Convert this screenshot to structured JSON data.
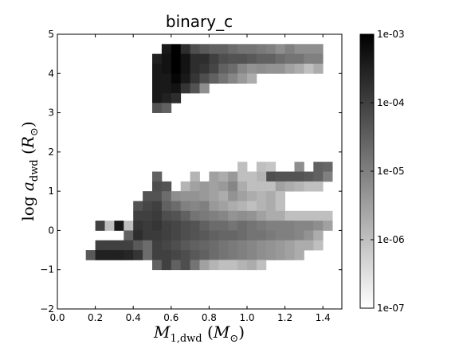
{
  "chart_data": {
    "type": "heatmap",
    "title": "binary_c",
    "xlabel": "M_{1,dwd}  (M_⊙)",
    "ylabel": "log a_{dwd}  (R_⊙)",
    "xlim": [
      0.0,
      1.5
    ],
    "ylim": [
      -2,
      5
    ],
    "x_ticks": [
      "0.0",
      "0.2",
      "0.4",
      "0.6",
      "0.8",
      "1.0",
      "1.2",
      "1.4"
    ],
    "y_ticks": [
      "−2",
      "−1",
      "0",
      "1",
      "2",
      "3",
      "4",
      "5"
    ],
    "colorbar": {
      "scale": "log",
      "range": [
        1e-07,
        0.001
      ],
      "tick_labels": [
        "1e-03",
        "1e-04",
        "1e-05",
        "1e-06",
        "1e-07"
      ],
      "colormap": "gray_r"
    },
    "bin_width": {
      "x": 0.05,
      "y": 0.25
    },
    "grid": false,
    "cells": [
      [
        0.55,
        4.5,
        0.0004
      ],
      [
        0.6,
        4.5,
        0.001
      ],
      [
        0.65,
        4.5,
        0.0002
      ],
      [
        0.7,
        4.5,
        6e-05
      ],
      [
        0.75,
        4.5,
        4e-05
      ],
      [
        0.8,
        4.5,
        3e-05
      ],
      [
        0.85,
        4.5,
        3e-05
      ],
      [
        0.9,
        4.5,
        2e-05
      ],
      [
        0.95,
        4.5,
        1.5e-05
      ],
      [
        1.0,
        4.5,
        1.5e-05
      ],
      [
        1.05,
        4.5,
        1.2e-05
      ],
      [
        1.1,
        4.5,
        1e-05
      ],
      [
        1.15,
        4.5,
        6e-06
      ],
      [
        1.2,
        4.5,
        1e-05
      ],
      [
        1.25,
        4.5,
        6e-06
      ],
      [
        1.3,
        4.5,
        6e-06
      ],
      [
        1.35,
        4.5,
        6e-06
      ],
      [
        0.5,
        4.25,
        0.0003
      ],
      [
        0.55,
        4.25,
        0.0005
      ],
      [
        0.6,
        4.25,
        0.001
      ],
      [
        0.65,
        4.25,
        0.0005
      ],
      [
        0.7,
        4.25,
        0.0002
      ],
      [
        0.75,
        4.25,
        0.0002
      ],
      [
        0.8,
        4.25,
        0.0001
      ],
      [
        0.85,
        4.25,
        6e-05
      ],
      [
        0.9,
        4.25,
        5e-05
      ],
      [
        0.95,
        4.25,
        5e-05
      ],
      [
        1.0,
        4.25,
        4e-05
      ],
      [
        1.05,
        4.25,
        3e-05
      ],
      [
        1.1,
        4.25,
        3e-05
      ],
      [
        1.15,
        4.25,
        2e-05
      ],
      [
        1.2,
        4.25,
        1.5e-05
      ],
      [
        1.25,
        4.25,
        1.5e-05
      ],
      [
        1.3,
        4.25,
        1e-05
      ],
      [
        1.35,
        4.25,
        1e-05
      ],
      [
        0.5,
        4.0,
        0.0004
      ],
      [
        0.55,
        4.0,
        0.0005
      ],
      [
        0.6,
        4.0,
        0.001
      ],
      [
        0.65,
        4.0,
        0.0005
      ],
      [
        0.7,
        4.0,
        0.0002
      ],
      [
        0.75,
        4.0,
        0.00015
      ],
      [
        0.8,
        4.0,
        8e-05
      ],
      [
        0.85,
        4.0,
        3e-05
      ],
      [
        0.9,
        4.0,
        2e-05
      ],
      [
        0.95,
        4.0,
        8e-06
      ],
      [
        1.0,
        4.0,
        5e-06
      ],
      [
        1.05,
        4.0,
        6e-06
      ],
      [
        1.1,
        4.0,
        5e-06
      ],
      [
        1.15,
        4.0,
        5e-06
      ],
      [
        1.2,
        4.0,
        3e-06
      ],
      [
        1.25,
        4.0,
        2e-06
      ],
      [
        1.3,
        4.0,
        1e-06
      ],
      [
        1.35,
        4.0,
        2e-06
      ],
      [
        0.5,
        3.75,
        0.0004
      ],
      [
        0.55,
        3.75,
        0.0004
      ],
      [
        0.6,
        3.75,
        0.0008
      ],
      [
        0.65,
        3.75,
        0.0004
      ],
      [
        0.7,
        3.75,
        0.00015
      ],
      [
        0.75,
        3.75,
        6e-05
      ],
      [
        0.8,
        3.75,
        3e-05
      ],
      [
        0.85,
        3.75,
        1.5e-05
      ],
      [
        0.9,
        3.75,
        8e-06
      ],
      [
        0.95,
        3.75,
        4e-06
      ],
      [
        1.0,
        3.75,
        2e-06
      ],
      [
        0.5,
        3.5,
        0.0004
      ],
      [
        0.55,
        3.5,
        0.0004
      ],
      [
        0.6,
        3.5,
        0.0005
      ],
      [
        0.65,
        3.5,
        0.00015
      ],
      [
        0.7,
        3.5,
        5e-05
      ],
      [
        0.75,
        3.5,
        6e-06
      ],
      [
        0.5,
        3.25,
        0.0004
      ],
      [
        0.55,
        3.25,
        0.0003
      ],
      [
        0.6,
        3.25,
        0.0002
      ],
      [
        0.5,
        3.0,
        5e-05
      ],
      [
        0.55,
        3.0,
        3e-05
      ],
      [
        1.35,
        1.5,
        3e-05
      ],
      [
        1.4,
        1.5,
        2.5e-05
      ],
      [
        1.25,
        1.5,
        6e-06
      ],
      [
        0.95,
        1.5,
        1e-06
      ],
      [
        1.05,
        1.5,
        1e-06
      ],
      [
        1.1,
        1.5,
        8e-07
      ],
      [
        0.5,
        1.25,
        3e-05
      ],
      [
        0.7,
        1.25,
        1.5e-06
      ],
      [
        0.8,
        1.25,
        3e-06
      ],
      [
        0.85,
        1.25,
        2e-06
      ],
      [
        0.9,
        1.25,
        4e-06
      ],
      [
        1.1,
        1.25,
        6e-05
      ],
      [
        1.15,
        1.25,
        5e-05
      ],
      [
        1.2,
        1.25,
        5e-05
      ],
      [
        1.25,
        1.25,
        5e-05
      ],
      [
        1.3,
        1.25,
        4e-05
      ],
      [
        1.35,
        1.25,
        3e-05
      ],
      [
        1.4,
        1.25,
        1e-05
      ],
      [
        1.05,
        1.25,
        1.5e-06
      ],
      [
        1.0,
        1.25,
        1e-06
      ],
      [
        0.95,
        1.25,
        1e-06
      ],
      [
        0.5,
        1.0,
        6e-05
      ],
      [
        0.55,
        1.0,
        5e-05
      ],
      [
        0.65,
        1.0,
        1.5e-06
      ],
      [
        0.7,
        1.0,
        3e-06
      ],
      [
        0.75,
        1.0,
        4e-06
      ],
      [
        0.8,
        1.0,
        3e-06
      ],
      [
        0.85,
        1.0,
        4e-06
      ],
      [
        0.9,
        1.0,
        8e-06
      ],
      [
        0.95,
        1.0,
        2e-06
      ],
      [
        1.0,
        1.0,
        1e-06
      ],
      [
        1.05,
        1.0,
        1e-06
      ],
      [
        1.1,
        1.0,
        1e-06
      ],
      [
        1.15,
        1.0,
        3e-06
      ],
      [
        1.2,
        1.0,
        2e-06
      ],
      [
        1.25,
        1.0,
        1.5e-06
      ],
      [
        1.3,
        1.0,
        1e-06
      ],
      [
        1.35,
        1.0,
        1e-06
      ],
      [
        0.45,
        0.75,
        5e-05
      ],
      [
        0.5,
        0.75,
        5e-05
      ],
      [
        0.55,
        0.75,
        2e-05
      ],
      [
        0.6,
        0.75,
        6e-06
      ],
      [
        0.65,
        0.75,
        5e-06
      ],
      [
        0.7,
        0.75,
        5e-06
      ],
      [
        0.75,
        0.75,
        4e-06
      ],
      [
        0.8,
        0.75,
        3e-06
      ],
      [
        0.85,
        0.75,
        2e-06
      ],
      [
        0.9,
        0.75,
        5e-06
      ],
      [
        0.95,
        0.75,
        3e-06
      ],
      [
        1.0,
        0.75,
        2e-06
      ],
      [
        1.05,
        0.75,
        1.5e-06
      ],
      [
        1.1,
        0.75,
        2e-06
      ],
      [
        1.15,
        0.75,
        1e-06
      ],
      [
        0.4,
        0.5,
        5e-05
      ],
      [
        0.45,
        0.5,
        8e-05
      ],
      [
        0.5,
        0.5,
        0.0001
      ],
      [
        0.55,
        0.5,
        3e-05
      ],
      [
        0.6,
        0.5,
        2e-05
      ],
      [
        0.65,
        0.5,
        1e-05
      ],
      [
        0.7,
        0.5,
        8e-06
      ],
      [
        0.75,
        0.5,
        1e-05
      ],
      [
        0.8,
        0.5,
        4e-06
      ],
      [
        0.85,
        0.5,
        3e-06
      ],
      [
        0.9,
        0.5,
        2e-06
      ],
      [
        0.95,
        0.5,
        1.5e-06
      ],
      [
        1.0,
        0.5,
        1e-06
      ],
      [
        1.05,
        0.5,
        1.5e-06
      ],
      [
        1.1,
        0.5,
        2e-06
      ],
      [
        1.15,
        0.5,
        1e-06
      ],
      [
        0.4,
        0.25,
        0.0001
      ],
      [
        0.45,
        0.25,
        0.0001
      ],
      [
        0.5,
        0.25,
        0.00012
      ],
      [
        0.55,
        0.25,
        6e-05
      ],
      [
        0.6,
        0.25,
        5e-05
      ],
      [
        0.65,
        0.25,
        3e-05
      ],
      [
        0.7,
        0.25,
        1.5e-05
      ],
      [
        0.75,
        0.25,
        1.2e-05
      ],
      [
        0.8,
        0.25,
        1e-05
      ],
      [
        0.85,
        0.25,
        8e-06
      ],
      [
        0.9,
        0.25,
        5e-06
      ],
      [
        0.95,
        0.25,
        6e-06
      ],
      [
        1.0,
        0.25,
        5e-06
      ],
      [
        1.05,
        0.25,
        3e-06
      ],
      [
        1.1,
        0.25,
        2e-06
      ],
      [
        1.15,
        0.25,
        2e-06
      ],
      [
        1.2,
        0.25,
        1e-06
      ],
      [
        1.25,
        0.25,
        1e-06
      ],
      [
        1.3,
        0.25,
        1e-06
      ],
      [
        1.35,
        0.25,
        1e-06
      ],
      [
        1.4,
        0.25,
        1e-06
      ],
      [
        0.2,
        0.0,
        0.0001
      ],
      [
        0.25,
        0.0,
        1e-06
      ],
      [
        0.3,
        0.0,
        0.0004
      ],
      [
        0.35,
        0.0,
        1e-06
      ],
      [
        0.4,
        0.0,
        0.00015
      ],
      [
        0.45,
        0.0,
        0.00012
      ],
      [
        0.5,
        0.0,
        0.00015
      ],
      [
        0.55,
        0.0,
        0.0001
      ],
      [
        0.6,
        0.0,
        8e-05
      ],
      [
        0.65,
        0.0,
        6e-05
      ],
      [
        0.7,
        0.0,
        5e-05
      ],
      [
        0.75,
        0.0,
        3e-05
      ],
      [
        0.8,
        0.0,
        2e-05
      ],
      [
        0.85,
        0.0,
        2e-05
      ],
      [
        0.9,
        0.0,
        1.5e-05
      ],
      [
        0.95,
        0.0,
        2e-05
      ],
      [
        1.0,
        0.0,
        1.5e-05
      ],
      [
        1.05,
        0.0,
        1.2e-05
      ],
      [
        1.1,
        0.0,
        1e-05
      ],
      [
        1.15,
        0.0,
        1e-05
      ],
      [
        1.2,
        0.0,
        1e-05
      ],
      [
        1.25,
        0.0,
        8e-06
      ],
      [
        1.3,
        0.0,
        8e-06
      ],
      [
        1.35,
        0.0,
        6e-06
      ],
      [
        1.4,
        0.0,
        3e-06
      ],
      [
        0.35,
        -0.25,
        3e-05
      ],
      [
        0.4,
        -0.25,
        0.0002
      ],
      [
        0.45,
        -0.25,
        0.00012
      ],
      [
        0.5,
        -0.25,
        0.00012
      ],
      [
        0.55,
        -0.25,
        0.0001
      ],
      [
        0.6,
        -0.25,
        8e-05
      ],
      [
        0.65,
        -0.25,
        6e-05
      ],
      [
        0.7,
        -0.25,
        5e-05
      ],
      [
        0.75,
        -0.25,
        4e-05
      ],
      [
        0.8,
        -0.25,
        3e-05
      ],
      [
        0.85,
        -0.25,
        2.5e-05
      ],
      [
        0.9,
        -0.25,
        2.5e-05
      ],
      [
        0.95,
        -0.25,
        2e-05
      ],
      [
        1.0,
        -0.25,
        1.5e-05
      ],
      [
        1.05,
        -0.25,
        1.5e-05
      ],
      [
        1.1,
        -0.25,
        1.2e-05
      ],
      [
        1.15,
        -0.25,
        1e-05
      ],
      [
        1.2,
        -0.25,
        1e-05
      ],
      [
        1.25,
        -0.25,
        8e-06
      ],
      [
        1.3,
        -0.25,
        5e-06
      ],
      [
        1.35,
        -0.25,
        2e-06
      ],
      [
        0.2,
        -0.5,
        0.0001
      ],
      [
        0.25,
        -0.5,
        0.0001
      ],
      [
        0.3,
        -0.5,
        0.0001
      ],
      [
        0.35,
        -0.5,
        0.0001
      ],
      [
        0.4,
        -0.5,
        4e-05
      ],
      [
        0.45,
        -0.5,
        2e-05
      ],
      [
        0.5,
        -0.5,
        0.0001
      ],
      [
        0.55,
        -0.5,
        8e-05
      ],
      [
        0.6,
        -0.5,
        6e-05
      ],
      [
        0.65,
        -0.5,
        4e-05
      ],
      [
        0.7,
        -0.5,
        3e-05
      ],
      [
        0.75,
        -0.5,
        2.5e-05
      ],
      [
        0.8,
        -0.5,
        2e-05
      ],
      [
        0.85,
        -0.5,
        1.5e-05
      ],
      [
        0.9,
        -0.5,
        1.2e-05
      ],
      [
        0.95,
        -0.5,
        1e-05
      ],
      [
        1.0,
        -0.5,
        8e-06
      ],
      [
        1.05,
        -0.5,
        6e-06
      ],
      [
        1.1,
        -0.5,
        5e-06
      ],
      [
        1.15,
        -0.5,
        4e-06
      ],
      [
        1.2,
        -0.5,
        3e-06
      ],
      [
        1.25,
        -0.5,
        2e-06
      ],
      [
        1.3,
        -0.5,
        2e-06
      ],
      [
        1.35,
        -0.5,
        1e-06
      ],
      [
        0.15,
        -0.75,
        4e-05
      ],
      [
        0.2,
        -0.75,
        0.0003
      ],
      [
        0.25,
        -0.75,
        0.0003
      ],
      [
        0.3,
        -0.75,
        0.0003
      ],
      [
        0.35,
        -0.75,
        0.00025
      ],
      [
        0.4,
        -0.75,
        0.00015
      ],
      [
        0.45,
        -0.75,
        2e-05
      ],
      [
        0.5,
        -0.75,
        0.0001
      ],
      [
        0.55,
        -0.75,
        0.0001
      ],
      [
        0.6,
        -0.75,
        8e-05
      ],
      [
        0.65,
        -0.75,
        6e-05
      ],
      [
        0.7,
        -0.75,
        4e-05
      ],
      [
        0.75,
        -0.75,
        3e-05
      ],
      [
        0.8,
        -0.75,
        2e-05
      ],
      [
        0.85,
        -0.75,
        1.5e-05
      ],
      [
        0.9,
        -0.75,
        1.2e-05
      ],
      [
        0.95,
        -0.75,
        1e-05
      ],
      [
        1.0,
        -0.75,
        8e-06
      ],
      [
        1.05,
        -0.75,
        6e-06
      ],
      [
        1.1,
        -0.75,
        5e-06
      ],
      [
        1.15,
        -0.75,
        4e-06
      ],
      [
        1.2,
        -0.75,
        3e-06
      ],
      [
        1.25,
        -0.75,
        2e-06
      ],
      [
        0.5,
        -1.0,
        3e-05
      ],
      [
        0.55,
        -1.0,
        0.0001
      ],
      [
        0.6,
        -1.0,
        3e-05
      ],
      [
        0.65,
        -1.0,
        6e-05
      ],
      [
        0.7,
        -1.0,
        1.5e-05
      ],
      [
        0.75,
        -1.0,
        3e-06
      ],
      [
        0.8,
        -1.0,
        1.5e-06
      ],
      [
        0.85,
        -1.0,
        1e-06
      ],
      [
        0.9,
        -1.0,
        1e-06
      ],
      [
        0.95,
        -1.0,
        1.5e-06
      ],
      [
        1.0,
        -1.0,
        2e-06
      ],
      [
        1.05,
        -1.0,
        1e-06
      ]
    ]
  }
}
